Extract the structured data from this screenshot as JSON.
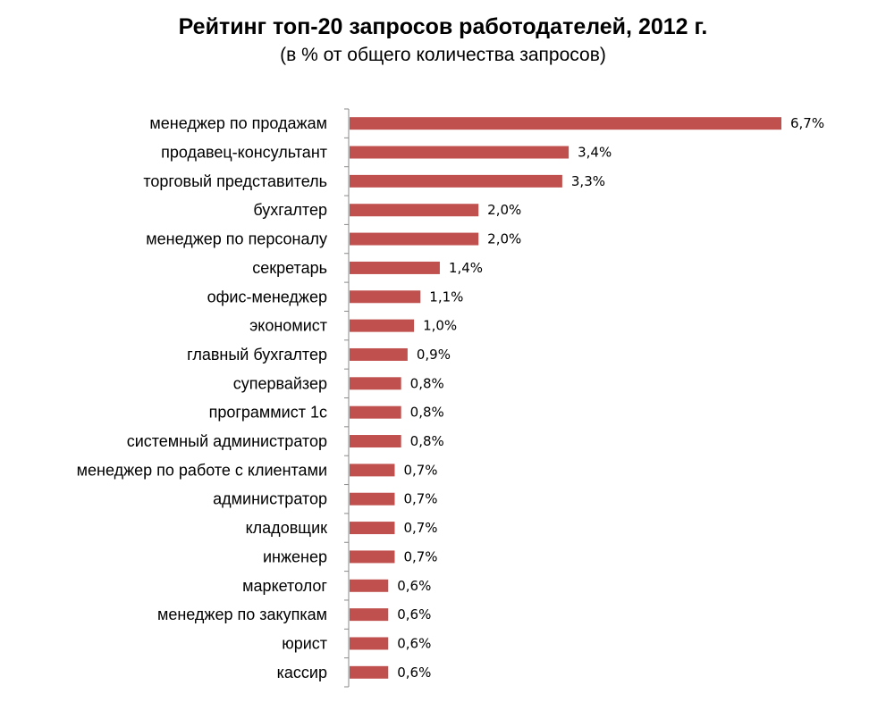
{
  "chart_data": {
    "type": "bar",
    "orientation": "horizontal",
    "title": "Рейтинг топ-20 запросов работодателей, 2012 г.",
    "subtitle": "(в % от общего количества запросов)",
    "categories": [
      "менеджер по продажам",
      "продавец-консультант",
      "торговый представитель",
      "бухгалтер",
      "менеджер по персоналу",
      "секретарь",
      "офис-менеджер",
      "экономист",
      "главный бухгалтер",
      "супервайзер",
      "программист  1с",
      "системный администратор",
      "менеджер по работе с клиентами",
      "администратор",
      "кладовщик",
      "инженер",
      "маркетолог",
      "менеджер по закупкам",
      "юрист",
      "кассир"
    ],
    "values": [
      6.7,
      3.4,
      3.3,
      2.0,
      2.0,
      1.4,
      1.1,
      1.0,
      0.9,
      0.8,
      0.8,
      0.8,
      0.7,
      0.7,
      0.7,
      0.7,
      0.6,
      0.6,
      0.6,
      0.6
    ],
    "data_labels": [
      "6,7%",
      "3,4%",
      "3,3%",
      "2,0%",
      "2,0%",
      "1,4%",
      "1,1%",
      "1,0%",
      "0,9%",
      "0,8%",
      "0,8%",
      "0,8%",
      "0,7%",
      "0,7%",
      "0,7%",
      "0,7%",
      "0,6%",
      "0,6%",
      "0,6%",
      "0,6%"
    ],
    "xlim": [
      0,
      6.7
    ],
    "grid": false,
    "legend": "none",
    "bar_color": "#c0504d",
    "axis_color": "#898989"
  }
}
